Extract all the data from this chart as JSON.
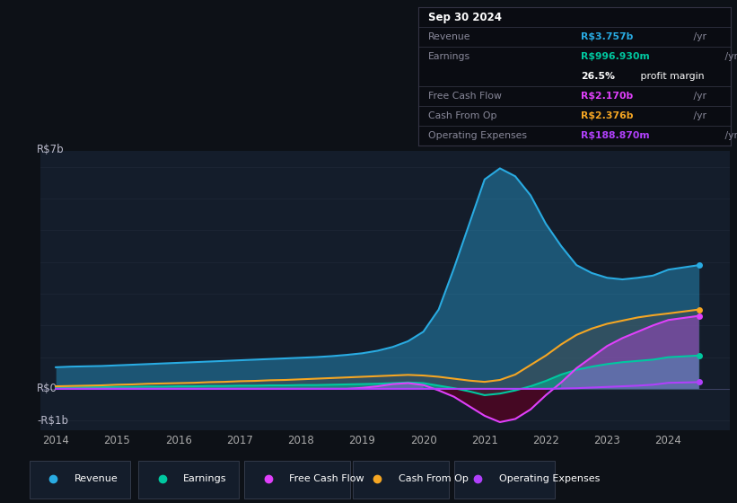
{
  "background_color": "#0d1117",
  "plot_bg_color": "#141d2b",
  "title": "Sep 30 2024",
  "y_label_top": "R$7b",
  "y_label_zero": "R$0",
  "y_label_neg": "-R$1b",
  "x_ticks": [
    "2014",
    "2015",
    "2016",
    "2017",
    "2018",
    "2019",
    "2020",
    "2021",
    "2022",
    "2023",
    "2024"
  ],
  "colors": {
    "revenue": "#29abe2",
    "earnings": "#00c8a0",
    "free_cash_flow": "#e040fb",
    "cash_from_op": "#f5a623",
    "operating_expenses": "#b040fb"
  },
  "tooltip": {
    "date": "Sep 30 2024",
    "revenue_label": "Revenue",
    "revenue_val": "R$3.757b",
    "revenue_suffix": " /yr",
    "revenue_color": "#29abe2",
    "earnings_label": "Earnings",
    "earnings_val": "R$996.930m",
    "earnings_suffix": " /yr",
    "earnings_color": "#00c8a0",
    "profit_margin": "26.5%",
    "profit_margin_suffix": " profit margin",
    "fcf_label": "Free Cash Flow",
    "fcf_val": "R$2.170b",
    "fcf_suffix": " /yr",
    "fcf_color": "#e040fb",
    "cfo_label": "Cash From Op",
    "cfo_val": "R$2.376b",
    "cfo_suffix": " /yr",
    "cfo_color": "#f5a623",
    "opex_label": "Operating Expenses",
    "opex_val": "R$188.870m",
    "opex_suffix": " /yr",
    "opex_color": "#b040fb"
  },
  "legend": [
    {
      "label": "Revenue",
      "color": "#29abe2"
    },
    {
      "label": "Earnings",
      "color": "#00c8a0"
    },
    {
      "label": "Free Cash Flow",
      "color": "#e040fb"
    },
    {
      "label": "Cash From Op",
      "color": "#f5a623"
    },
    {
      "label": "Operating Expenses",
      "color": "#b040fb"
    }
  ],
  "x_years": [
    2014.0,
    2014.25,
    2014.5,
    2014.75,
    2015.0,
    2015.25,
    2015.5,
    2015.75,
    2016.0,
    2016.25,
    2016.5,
    2016.75,
    2017.0,
    2017.25,
    2017.5,
    2017.75,
    2018.0,
    2018.25,
    2018.5,
    2018.75,
    2019.0,
    2019.25,
    2019.5,
    2019.75,
    2020.0,
    2020.25,
    2020.5,
    2020.75,
    2021.0,
    2021.25,
    2021.5,
    2021.75,
    2022.0,
    2022.25,
    2022.5,
    2022.75,
    2023.0,
    2023.25,
    2023.5,
    2023.75,
    2024.0,
    2024.5
  ],
  "revenue": [
    0.68,
    0.7,
    0.71,
    0.72,
    0.74,
    0.76,
    0.78,
    0.8,
    0.82,
    0.84,
    0.86,
    0.88,
    0.9,
    0.92,
    0.94,
    0.96,
    0.98,
    1.0,
    1.03,
    1.07,
    1.12,
    1.2,
    1.32,
    1.5,
    1.8,
    2.5,
    3.8,
    5.2,
    6.6,
    6.95,
    6.7,
    6.1,
    5.2,
    4.5,
    3.9,
    3.65,
    3.5,
    3.45,
    3.5,
    3.57,
    3.757,
    3.9
  ],
  "earnings": [
    0.04,
    0.04,
    0.05,
    0.05,
    0.06,
    0.06,
    0.07,
    0.07,
    0.08,
    0.08,
    0.09,
    0.09,
    0.1,
    0.1,
    0.11,
    0.11,
    0.12,
    0.12,
    0.13,
    0.14,
    0.15,
    0.16,
    0.18,
    0.2,
    0.18,
    0.1,
    0.02,
    -0.08,
    -0.2,
    -0.15,
    -0.05,
    0.08,
    0.25,
    0.45,
    0.6,
    0.7,
    0.78,
    0.84,
    0.88,
    0.92,
    0.997,
    1.05
  ],
  "free_cash_flow": [
    0.0,
    0.0,
    0.0,
    0.0,
    0.0,
    0.0,
    0.0,
    0.0,
    0.0,
    0.0,
    0.0,
    0.0,
    0.0,
    0.0,
    0.0,
    0.0,
    0.0,
    0.0,
    0.0,
    0.0,
    0.03,
    0.08,
    0.15,
    0.18,
    0.12,
    -0.05,
    -0.25,
    -0.55,
    -0.85,
    -1.05,
    -0.95,
    -0.65,
    -0.2,
    0.2,
    0.65,
    1.0,
    1.35,
    1.6,
    1.8,
    2.0,
    2.17,
    2.3
  ],
  "cash_from_op": [
    0.08,
    0.09,
    0.1,
    0.11,
    0.13,
    0.14,
    0.16,
    0.17,
    0.18,
    0.19,
    0.21,
    0.22,
    0.24,
    0.25,
    0.27,
    0.28,
    0.3,
    0.32,
    0.34,
    0.36,
    0.38,
    0.4,
    0.42,
    0.44,
    0.42,
    0.38,
    0.32,
    0.26,
    0.22,
    0.28,
    0.45,
    0.75,
    1.05,
    1.4,
    1.7,
    1.9,
    2.05,
    2.15,
    2.25,
    2.32,
    2.376,
    2.5
  ],
  "operating_expenses": [
    0.0,
    0.0,
    0.0,
    0.0,
    0.0,
    0.0,
    0.0,
    0.0,
    0.0,
    0.0,
    0.0,
    0.0,
    0.0,
    0.0,
    0.0,
    0.0,
    0.0,
    0.0,
    0.0,
    0.0,
    0.0,
    0.0,
    0.0,
    0.0,
    0.0,
    0.0,
    0.0,
    0.0,
    0.0,
    0.0,
    0.0,
    0.0,
    0.0,
    0.01,
    0.02,
    0.04,
    0.06,
    0.08,
    0.1,
    0.13,
    0.1889,
    0.21
  ],
  "ylim": [
    -1.3,
    7.5
  ],
  "xlim": [
    2013.75,
    2025.0
  ]
}
